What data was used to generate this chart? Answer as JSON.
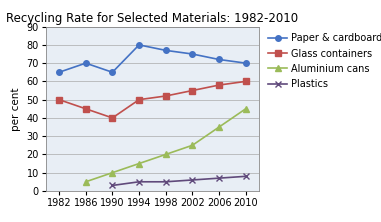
{
  "title": "Recycling Rate for Selected Materials: 1982-2010",
  "ylabel": "per cent",
  "years": [
    1982,
    1986,
    1990,
    1994,
    1998,
    2002,
    2006,
    2010
  ],
  "series": {
    "Paper & cardboard": {
      "values": [
        65,
        70,
        65,
        80,
        77,
        75,
        72,
        70
      ],
      "color": "#4472C4",
      "marker": "o",
      "markersize": 4,
      "linewidth": 1.2
    },
    "Glass containers": {
      "values": [
        50,
        45,
        40,
        50,
        52,
        55,
        58,
        60
      ],
      "color": "#C0504D",
      "marker": "s",
      "markersize": 4,
      "linewidth": 1.2
    },
    "Aluminium cans": {
      "values": [
        null,
        5,
        10,
        15,
        20,
        25,
        35,
        45
      ],
      "color": "#9BBB59",
      "marker": "^",
      "markersize": 4,
      "linewidth": 1.2
    },
    "Plastics": {
      "values": [
        null,
        null,
        3,
        5,
        5,
        6,
        7,
        8
      ],
      "color": "#604A7B",
      "marker": "x",
      "markersize": 4,
      "linewidth": 1.2
    }
  },
  "ylim": [
    0,
    90
  ],
  "yticks": [
    0,
    10,
    20,
    30,
    40,
    50,
    60,
    70,
    80,
    90
  ],
  "xticks": [
    1982,
    1986,
    1990,
    1994,
    1998,
    2002,
    2006,
    2010
  ],
  "xlim": [
    1980,
    2012
  ],
  "background_color": "#FFFFFF",
  "plot_bg_color": "#DDEEFF",
  "grid_color": "#AAAAAA",
  "title_fontsize": 8.5,
  "axis_label_fontsize": 7.5,
  "tick_fontsize": 7,
  "legend_fontsize": 7
}
